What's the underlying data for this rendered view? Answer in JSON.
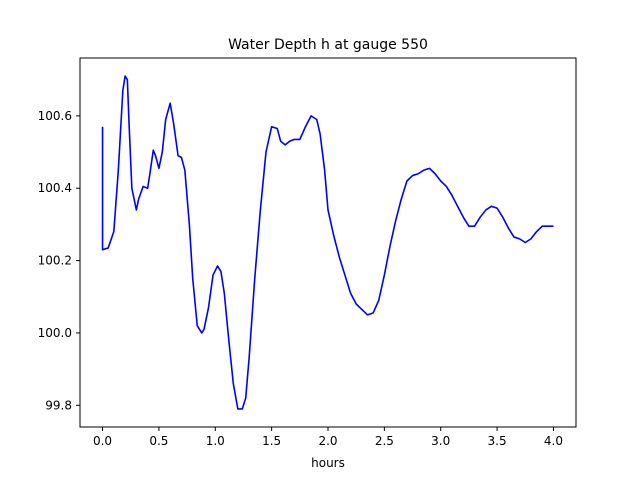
{
  "chart_data": {
    "type": "line",
    "title": "Water Depth h at gauge 550",
    "xlabel": "hours",
    "ylabel": "",
    "xlim": [
      -0.2,
      4.2
    ],
    "ylim": [
      99.74,
      100.76
    ],
    "xticks": [
      0.0,
      0.5,
      1.0,
      1.5,
      2.0,
      2.5,
      3.0,
      3.5,
      4.0
    ],
    "xtick_labels": [
      "0.0",
      "0.5",
      "1.0",
      "1.5",
      "2.0",
      "2.5",
      "3.0",
      "3.5",
      "4.0"
    ],
    "yticks": [
      99.8,
      100.0,
      100.2,
      100.4,
      100.6
    ],
    "ytick_labels": [
      "99.8",
      "100.0",
      "100.2",
      "100.4",
      "100.6"
    ],
    "grid": false,
    "series": [
      {
        "color": "#0000ff",
        "x": [
          0.0,
          0.0,
          0.0,
          0.05,
          0.1,
          0.14,
          0.18,
          0.2,
          0.22,
          0.235,
          0.26,
          0.3,
          0.32,
          0.36,
          0.4,
          0.42,
          0.45,
          0.47,
          0.5,
          0.53,
          0.56,
          0.6,
          0.63,
          0.67,
          0.7,
          0.73,
          0.77,
          0.8,
          0.84,
          0.88,
          0.9,
          0.94,
          0.98,
          1.02,
          1.05,
          1.08,
          1.12,
          1.16,
          1.2,
          1.24,
          1.27,
          1.3,
          1.35,
          1.4,
          1.45,
          1.5,
          1.55,
          1.58,
          1.62,
          1.66,
          1.7,
          1.75,
          1.8,
          1.85,
          1.9,
          1.93,
          1.97,
          2.0,
          2.05,
          2.1,
          2.15,
          2.2,
          2.25,
          2.3,
          2.35,
          2.4,
          2.45,
          2.5,
          2.55,
          2.6,
          2.65,
          2.7,
          2.75,
          2.8,
          2.85,
          2.9,
          2.95,
          3.0,
          3.05,
          3.1,
          3.15,
          3.2,
          3.25,
          3.3,
          3.35,
          3.4,
          3.45,
          3.5,
          3.55,
          3.6,
          3.65,
          3.7,
          3.75,
          3.8,
          3.85,
          3.9,
          3.95,
          4.0
        ],
        "y": [
          100.57,
          100.23,
          100.23,
          100.235,
          100.28,
          100.45,
          100.67,
          100.71,
          100.7,
          100.58,
          100.4,
          100.34,
          100.37,
          100.405,
          100.4,
          100.44,
          100.505,
          100.49,
          100.455,
          100.5,
          100.59,
          100.635,
          100.58,
          100.49,
          100.485,
          100.45,
          100.3,
          100.15,
          100.02,
          100.0,
          100.01,
          100.07,
          100.16,
          100.185,
          100.17,
          100.11,
          99.98,
          99.86,
          99.79,
          99.79,
          99.82,
          99.93,
          100.15,
          100.34,
          100.5,
          100.57,
          100.565,
          100.53,
          100.52,
          100.53,
          100.535,
          100.535,
          100.57,
          100.6,
          100.59,
          100.55,
          100.45,
          100.34,
          100.27,
          100.21,
          100.16,
          100.11,
          100.08,
          100.065,
          100.05,
          100.055,
          100.09,
          100.16,
          100.24,
          100.31,
          100.37,
          100.42,
          100.435,
          100.44,
          100.45,
          100.455,
          100.44,
          100.42,
          100.405,
          100.38,
          100.35,
          100.32,
          100.295,
          100.295,
          100.32,
          100.34,
          100.35,
          100.345,
          100.32,
          100.29,
          100.265,
          100.26,
          100.25,
          100.26,
          100.28,
          100.295,
          100.295,
          100.295
        ]
      }
    ]
  }
}
